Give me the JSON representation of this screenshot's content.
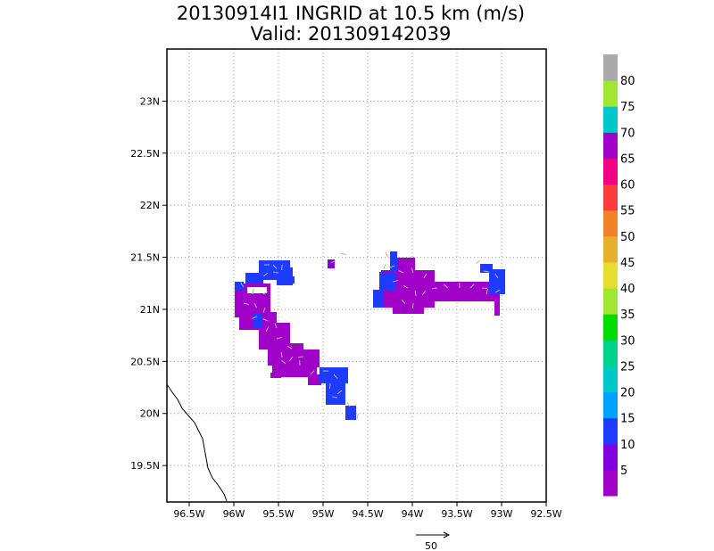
{
  "title": {
    "line1": "20130914I1 INGRID at 10.5 km (m/s)",
    "line2": "Valid: 201309142039"
  },
  "map": {
    "lat_ticks": [
      "23N",
      "22.5N",
      "22N",
      "21.5N",
      "21N",
      "20.5N",
      "20N",
      "19.5N"
    ],
    "lon_ticks": [
      "96.5W",
      "96W",
      "95.5W",
      "95W",
      "94.5W",
      "94W",
      "93.5W",
      "93W",
      "92.5W"
    ],
    "lon_range": [
      -96.75,
      -92.5
    ],
    "lat_range": [
      19.15,
      23.5
    ],
    "grid": "dotted",
    "reference_vector_label": "50",
    "coastline_color": "#000000"
  },
  "colorbar": {
    "labels": [
      "5",
      "10",
      "15",
      "20",
      "25",
      "30",
      "35",
      "40",
      "45",
      "50",
      "55",
      "60",
      "65",
      "70",
      "75",
      "80"
    ],
    "colors": [
      "#a000c8",
      "#7f00dc",
      "#1e3cff",
      "#00a0ff",
      "#00c8c8",
      "#00d28c",
      "#00dc00",
      "#a0e632",
      "#e6dc32",
      "#e6af2d",
      "#f08228",
      "#fa3c3c",
      "#f00082",
      "#a000c8",
      "#00c8c8",
      "#a0e632",
      "#aaaaaa"
    ]
  },
  "wind_colors": {
    "purple": "#a000c8",
    "violet": "#7f00dc",
    "blue": "#1e3cff",
    "arrow": "#b4b4b4"
  }
}
